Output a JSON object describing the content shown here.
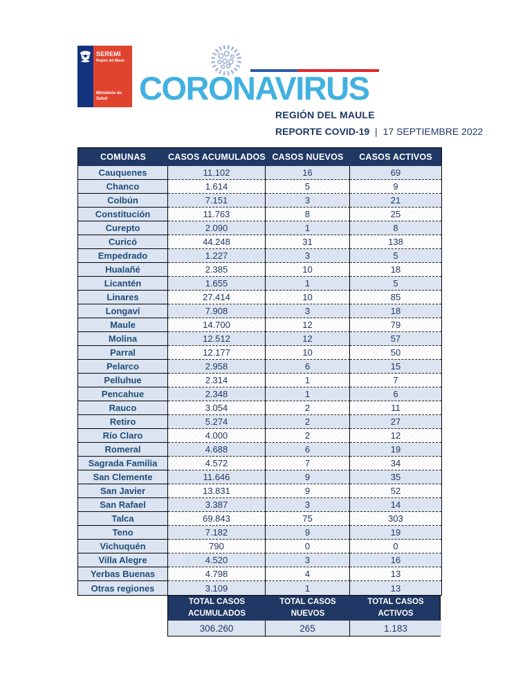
{
  "header": {
    "logo": {
      "agency": "SEREMI",
      "region": "Región del Maule",
      "ministry": "Ministerio de Salud"
    },
    "wordmark": "CORONAVIRUS",
    "region_title": "REGIÓN DEL MAULE",
    "report_label": "REPORTE COVID-19",
    "report_separator": "|",
    "report_date": "17 SEPTIEMBRE 2022"
  },
  "icons": {
    "virus": "virus-icon",
    "coat_of_arms": "coat-of-arms-icon",
    "flag_stripe": "chile-flag-stripe"
  },
  "colors": {
    "navy": "#1F3864",
    "comuna_text": "#1F4E79",
    "light_row": "#dce4f1",
    "wordmark_blue": "#41B1E1",
    "stripe_blue": "#2A5CAA",
    "stripe_red": "#E0262C",
    "logo_blue": "#14337E",
    "logo_red": "#E0442F"
  },
  "table": {
    "columns": [
      "COMUNAS",
      "CASOS ACUMULADOS",
      "CASOS NUEVOS",
      "CASOS ACTIVOS"
    ],
    "rows": [
      [
        "Cauquenes",
        "11.102",
        "16",
        "69"
      ],
      [
        "Chanco",
        "1.614",
        "5",
        "9"
      ],
      [
        "Colbún",
        "7.151",
        "3",
        "21"
      ],
      [
        "Constitución",
        "11.763",
        "8",
        "25"
      ],
      [
        "Curepto",
        "2.090",
        "1",
        "8"
      ],
      [
        "Curicó",
        "44.248",
        "31",
        "138"
      ],
      [
        "Empedrado",
        "1.227",
        "3",
        "5"
      ],
      [
        "Hualañé",
        "2.385",
        "10",
        "18"
      ],
      [
        "Licantén",
        "1.655",
        "1",
        "5"
      ],
      [
        "Linares",
        "27.414",
        "10",
        "85"
      ],
      [
        "Longaví",
        "7.908",
        "3",
        "18"
      ],
      [
        "Maule",
        "14.700",
        "12",
        "79"
      ],
      [
        "Molina",
        "12.512",
        "12",
        "57"
      ],
      [
        "Parral",
        "12.177",
        "10",
        "50"
      ],
      [
        "Pelarco",
        "2.958",
        "6",
        "15"
      ],
      [
        "Pelluhue",
        "2.314",
        "1",
        "7"
      ],
      [
        "Pencahue",
        "2.348",
        "1",
        "6"
      ],
      [
        "Rauco",
        "3.054",
        "2",
        "11"
      ],
      [
        "Retiro",
        "5.274",
        "2",
        "27"
      ],
      [
        "Río Claro",
        "4.000",
        "2",
        "12"
      ],
      [
        "Romeral",
        "4.688",
        "6",
        "19"
      ],
      [
        "Sagrada Familia",
        "4.572",
        "7",
        "34"
      ],
      [
        "San Clemente",
        "11.646",
        "9",
        "35"
      ],
      [
        "San Javier",
        "13.831",
        "9",
        "52"
      ],
      [
        "San Rafael",
        "3.387",
        "3",
        "14"
      ],
      [
        "Talca",
        "69.843",
        "75",
        "303"
      ],
      [
        "Teno",
        "7.182",
        "9",
        "19"
      ],
      [
        "Vichuquén",
        "790",
        "0",
        "0"
      ],
      [
        "Villa Alegre",
        "4.520",
        "3",
        "16"
      ],
      [
        "Yerbas Buenas",
        "4.798",
        "4",
        "13"
      ],
      [
        "Otras regiones",
        "3.109",
        "1",
        "13"
      ]
    ],
    "totals": {
      "headers": [
        [
          "TOTAL CASOS",
          "ACUMULADOS"
        ],
        [
          "TOTAL CASOS",
          "NUEVOS"
        ],
        [
          "TOTAL CASOS",
          "ACTIVOS"
        ]
      ],
      "values": [
        "306.260",
        "265",
        "1.183"
      ]
    }
  }
}
